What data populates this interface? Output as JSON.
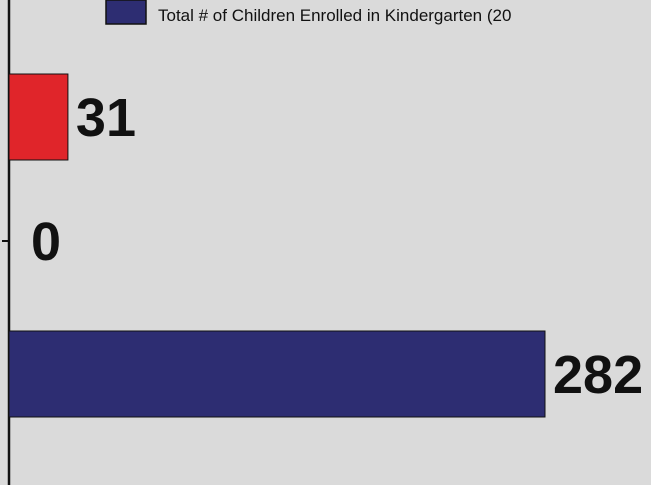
{
  "chart_data": {
    "type": "bar",
    "orientation": "horizontal",
    "title": "",
    "xlabel": "",
    "ylabel": "",
    "bars": [
      {
        "value": 31,
        "label": "31",
        "color": "#e0252a"
      },
      {
        "value": 0,
        "label": "0",
        "color": "#e0252a"
      },
      {
        "value": 282,
        "label": "282",
        "color": "#2d2d72"
      }
    ],
    "xlim": [
      0,
      290
    ],
    "grid": false,
    "legend": {
      "position": "top",
      "entries": [
        {
          "label": "Total # of Children Enrolled in Kindergarten (20",
          "color": "#2d2d72"
        }
      ]
    }
  },
  "colors": {
    "background": "#dadada",
    "axis": "#111111",
    "label": "#111111"
  }
}
